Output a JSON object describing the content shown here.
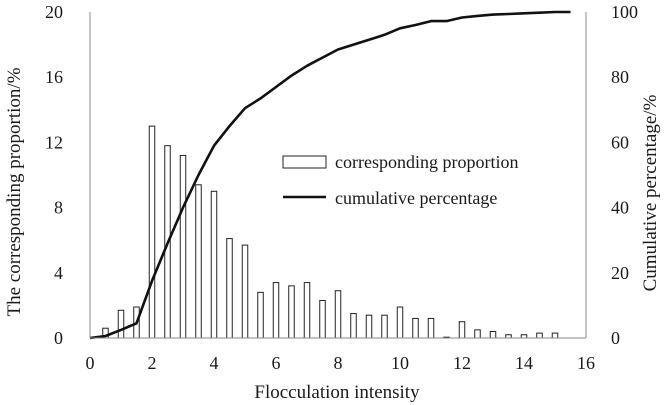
{
  "chart_data": {
    "type": "bar",
    "x_axis": {
      "label": "Flocculation intensity",
      "range": [
        0,
        16
      ],
      "ticks": [
        "0",
        "2",
        "4",
        "6",
        "8",
        "10",
        "12",
        "14",
        "16"
      ]
    },
    "y_left": {
      "label": "The corresponding proportion/%",
      "range": [
        0,
        20
      ],
      "ticks": [
        "0",
        "4",
        "8",
        "12",
        "16",
        "20"
      ]
    },
    "y_right": {
      "label": "Cumulative percentage/%",
      "range": [
        0,
        100
      ],
      "ticks": [
        "0",
        "20",
        "40",
        "60",
        "80",
        "100"
      ]
    },
    "legend": {
      "placement": "center-right",
      "show": true
    },
    "series": [
      {
        "name": "corresponding proportion",
        "kind": "bar",
        "axis": "left",
        "color": "#ffffff",
        "stroke": "#222222",
        "x": [
          0.5,
          1.0,
          1.5,
          2.0,
          2.5,
          3.0,
          3.5,
          4.0,
          4.5,
          5.0,
          5.5,
          6.0,
          6.5,
          7.0,
          7.5,
          8.0,
          8.5,
          9.0,
          9.5,
          10.0,
          10.5,
          11.0,
          11.5,
          12.0,
          12.5,
          13.0,
          13.5,
          14.0,
          14.5,
          15.0
        ],
        "values": [
          0.6,
          1.7,
          1.9,
          13.0,
          11.8,
          11.2,
          9.4,
          9.0,
          6.1,
          5.7,
          2.8,
          3.4,
          3.2,
          3.4,
          2.3,
          2.9,
          1.5,
          1.4,
          1.4,
          1.9,
          1.2,
          1.2,
          0.05,
          1.0,
          0.5,
          0.4,
          0.2,
          0.2,
          0.3,
          0.3
        ]
      },
      {
        "name": "cumulative percentage",
        "kind": "line",
        "axis": "right",
        "color": "#111111",
        "x": [
          0,
          0.5,
          1.0,
          1.5,
          2.0,
          2.5,
          3.0,
          3.5,
          4.0,
          4.5,
          5.0,
          5.5,
          6.0,
          6.5,
          7.0,
          7.5,
          8.0,
          8.5,
          9.0,
          9.5,
          10.0,
          10.5,
          11.0,
          11.5,
          12.0,
          12.5,
          13.0,
          13.5,
          14.0,
          14.5,
          15.0,
          15.5
        ],
        "values": [
          0,
          0.6,
          2.5,
          4.5,
          17.5,
          29.0,
          40.0,
          50.0,
          59.0,
          65.0,
          70.5,
          73.5,
          77.0,
          80.5,
          83.5,
          86.0,
          88.5,
          90.0,
          91.5,
          93.0,
          95.0,
          96.0,
          97.2,
          97.2,
          98.3,
          98.8,
          99.2,
          99.4,
          99.6,
          99.8,
          100.0,
          100.0
        ]
      }
    ]
  }
}
